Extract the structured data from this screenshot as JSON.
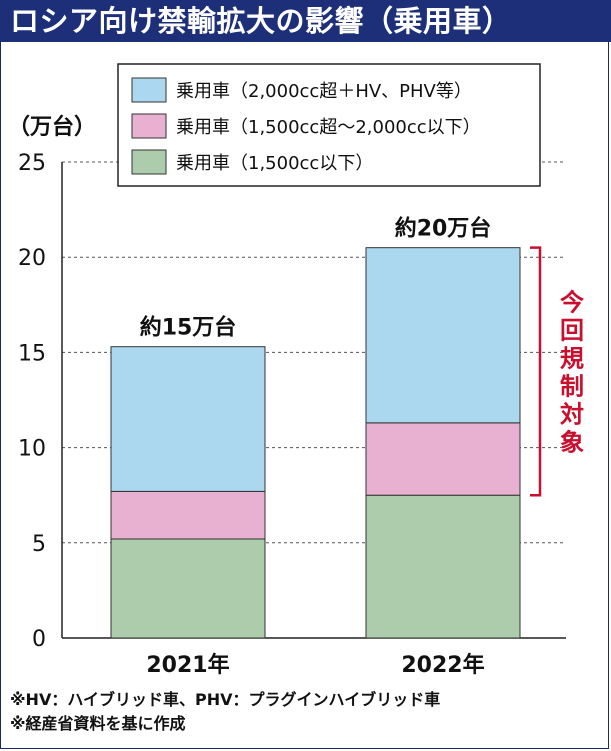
{
  "title": "ロシア向け禁輸拡大の影響（乗用車）",
  "chart_data": {
    "type": "bar",
    "stacked": true,
    "title": "ロシア向け禁輸拡大の影響（乗用車）",
    "ylabel": "（万台）",
    "ylim": [
      0,
      25
    ],
    "yticks": [
      0,
      5,
      10,
      15,
      20,
      25
    ],
    "categories": [
      "2021年",
      "2022年"
    ],
    "series": [
      {
        "name": "乗用車（1,500cc以下）",
        "color": "#acccab",
        "values": [
          5.2,
          7.5
        ]
      },
      {
        "name": "乗用車（1,500cc超〜2,000cc以下）",
        "color": "#e8b1d1",
        "values": [
          2.5,
          3.8
        ]
      },
      {
        "name": "乗用車（2,000cc超＋HV、PHV等）",
        "color": "#abd7ef",
        "values": [
          7.6,
          9.2
        ]
      }
    ],
    "legend_order": [
      2,
      1,
      0
    ],
    "total_labels": [
      "約15万台",
      "約20万台"
    ],
    "bracket_label": "今回規制対象",
    "bracket_color": "#c8102e"
  },
  "notes": [
    "※HV：ハイブリッド車、PHV：プラグインハイブリッド車",
    "※経産省資料を基に作成"
  ]
}
